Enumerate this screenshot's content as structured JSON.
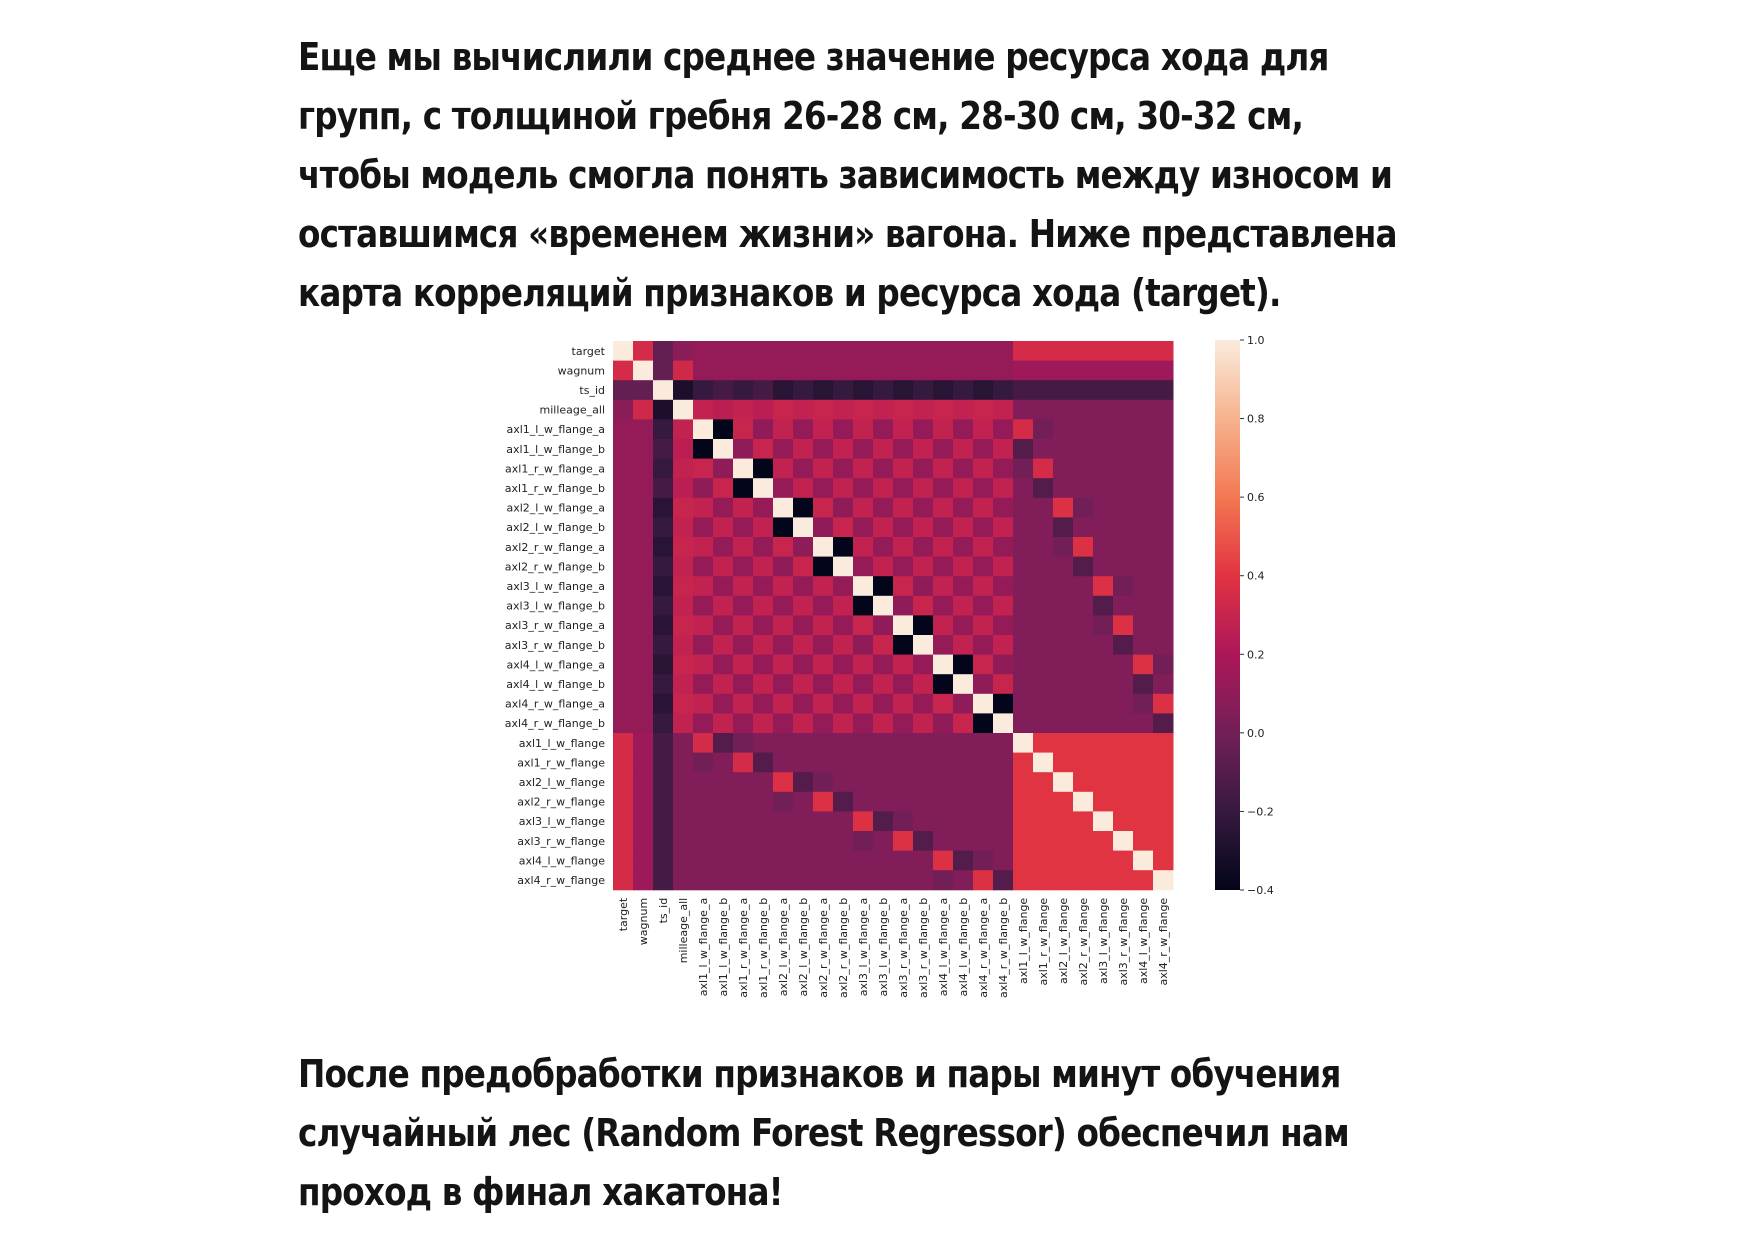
{
  "intro_lines": [
    "Еще мы вычислили среднее значение ресурса хода для",
    "групп, с толщиной гребня 26-28 см, 28-30 см, 30-32 см,",
    "чтобы модель смогла понять зависимость между износом и",
    "оставшимся «временем жизни» вагона. Ниже представлена",
    "карта корреляций признаков и ресурса хода (target)."
  ],
  "outro_lines": [
    "После предобработки признаков и пары минут обучения",
    "случайный лес (Random Forest Regressor) обеспечил нам",
    "проход в финал хакатона!"
  ],
  "chart_data": {
    "type": "heatmap",
    "title": "",
    "labels": [
      "target",
      "wagnum",
      "ts_id",
      "milleage_all",
      "axl1_l_w_flange_a",
      "axl1_l_w_flange_b",
      "axl1_r_w_flange_a",
      "axl1_r_w_flange_b",
      "axl2_l_w_flange_a",
      "axl2_l_w_flange_b",
      "axl2_r_w_flange_a",
      "axl2_r_w_flange_b",
      "axl3_l_w_flange_a",
      "axl3_l_w_flange_b",
      "axl3_r_w_flange_a",
      "axl3_r_w_flange_b",
      "axl4_l_w_flange_a",
      "axl4_l_w_flange_b",
      "axl4_r_w_flange_a",
      "axl4_r_w_flange_b",
      "axl1_l_w_flange",
      "axl1_r_w_flange",
      "axl2_l_w_flange",
      "axl2_r_w_flange",
      "axl3_l_w_flange",
      "axl3_r_w_flange",
      "axl4_l_w_flange",
      "axl4_r_w_flange"
    ],
    "colorbar": {
      "min": -0.4,
      "max": 1.0,
      "ticks": [
        1.0,
        0.8,
        0.6,
        0.4,
        0.2,
        0.0,
        -0.2,
        -0.4
      ],
      "tick_labels": [
        "1.0",
        "0.8",
        "0.6",
        "0.4",
        "0.2",
        "0.0",
        "−0.2",
        "−0.4"
      ]
    },
    "colormap": "rocket",
    "matrix": [
      [
        1.0,
        0.35,
        -0.05,
        0.08,
        0.12,
        0.12,
        0.12,
        0.12,
        0.12,
        0.12,
        0.12,
        0.12,
        0.12,
        0.12,
        0.12,
        0.12,
        0.12,
        0.12,
        0.12,
        0.12,
        0.35,
        0.35,
        0.35,
        0.35,
        0.35,
        0.35,
        0.35,
        0.35
      ],
      [
        0.35,
        1.0,
        -0.05,
        0.33,
        0.12,
        0.12,
        0.12,
        0.12,
        0.12,
        0.12,
        0.12,
        0.12,
        0.12,
        0.12,
        0.12,
        0.12,
        0.12,
        0.12,
        0.12,
        0.12,
        0.15,
        0.15,
        0.15,
        0.15,
        0.15,
        0.15,
        0.15,
        0.15
      ],
      [
        -0.05,
        -0.05,
        1.0,
        -0.3,
        -0.2,
        -0.15,
        -0.2,
        -0.15,
        -0.25,
        -0.2,
        -0.25,
        -0.2,
        -0.25,
        -0.2,
        -0.25,
        -0.2,
        -0.25,
        -0.2,
        -0.25,
        -0.2,
        -0.15,
        -0.15,
        -0.15,
        -0.15,
        -0.15,
        -0.15,
        -0.15,
        -0.15
      ],
      [
        0.08,
        0.33,
        -0.3,
        1.0,
        0.28,
        0.25,
        0.28,
        0.25,
        0.3,
        0.28,
        0.3,
        0.28,
        0.3,
        0.28,
        0.3,
        0.28,
        0.3,
        0.28,
        0.3,
        0.28,
        0.05,
        0.05,
        0.05,
        0.05,
        0.05,
        0.05,
        0.05,
        0.05
      ],
      [
        0.12,
        0.12,
        -0.2,
        0.28,
        1.0,
        -0.45,
        0.3,
        0.1,
        0.28,
        0.12,
        0.28,
        0.12,
        0.28,
        0.12,
        0.28,
        0.12,
        0.28,
        0.12,
        0.28,
        0.12,
        0.35,
        0.0,
        0.05,
        0.05,
        0.05,
        0.05,
        0.05,
        0.05
      ],
      [
        0.12,
        0.12,
        -0.15,
        0.25,
        -0.45,
        1.0,
        0.1,
        0.3,
        0.12,
        0.28,
        0.12,
        0.28,
        0.12,
        0.28,
        0.12,
        0.28,
        0.12,
        0.28,
        0.12,
        0.28,
        -0.1,
        0.05,
        0.05,
        0.05,
        0.05,
        0.05,
        0.05,
        0.05
      ],
      [
        0.12,
        0.12,
        -0.2,
        0.28,
        0.3,
        0.1,
        1.0,
        -0.45,
        0.28,
        0.12,
        0.28,
        0.12,
        0.28,
        0.12,
        0.28,
        0.12,
        0.28,
        0.12,
        0.28,
        0.12,
        0.0,
        0.35,
        0.05,
        0.05,
        0.05,
        0.05,
        0.05,
        0.05
      ],
      [
        0.12,
        0.12,
        -0.15,
        0.25,
        0.1,
        0.3,
        -0.45,
        1.0,
        0.12,
        0.28,
        0.12,
        0.28,
        0.12,
        0.28,
        0.12,
        0.28,
        0.12,
        0.28,
        0.12,
        0.28,
        0.05,
        -0.1,
        0.05,
        0.05,
        0.05,
        0.05,
        0.05,
        0.05
      ],
      [
        0.12,
        0.12,
        -0.25,
        0.3,
        0.28,
        0.12,
        0.28,
        0.12,
        1.0,
        -0.45,
        0.3,
        0.1,
        0.28,
        0.12,
        0.28,
        0.12,
        0.28,
        0.12,
        0.28,
        0.12,
        0.05,
        0.05,
        0.38,
        0.0,
        0.05,
        0.05,
        0.05,
        0.05
      ],
      [
        0.12,
        0.12,
        -0.2,
        0.28,
        0.12,
        0.28,
        0.12,
        0.28,
        -0.45,
        1.0,
        0.1,
        0.3,
        0.12,
        0.28,
        0.12,
        0.28,
        0.12,
        0.28,
        0.12,
        0.28,
        0.05,
        0.05,
        -0.1,
        0.05,
        0.05,
        0.05,
        0.05,
        0.05
      ],
      [
        0.12,
        0.12,
        -0.25,
        0.3,
        0.28,
        0.12,
        0.28,
        0.12,
        0.3,
        0.1,
        1.0,
        -0.45,
        0.28,
        0.12,
        0.28,
        0.12,
        0.28,
        0.12,
        0.28,
        0.12,
        0.05,
        0.05,
        0.0,
        0.38,
        0.05,
        0.05,
        0.05,
        0.05
      ],
      [
        0.12,
        0.12,
        -0.2,
        0.28,
        0.12,
        0.28,
        0.12,
        0.28,
        0.1,
        0.3,
        -0.45,
        1.0,
        0.12,
        0.28,
        0.12,
        0.28,
        0.12,
        0.28,
        0.12,
        0.28,
        0.05,
        0.05,
        0.05,
        -0.1,
        0.05,
        0.05,
        0.05,
        0.05
      ],
      [
        0.12,
        0.12,
        -0.25,
        0.3,
        0.28,
        0.12,
        0.28,
        0.12,
        0.28,
        0.12,
        0.28,
        0.12,
        1.0,
        -0.45,
        0.3,
        0.1,
        0.28,
        0.12,
        0.28,
        0.12,
        0.05,
        0.05,
        0.05,
        0.05,
        0.38,
        0.0,
        0.05,
        0.05
      ],
      [
        0.12,
        0.12,
        -0.2,
        0.28,
        0.12,
        0.28,
        0.12,
        0.28,
        0.12,
        0.28,
        0.12,
        0.28,
        -0.45,
        1.0,
        0.1,
        0.3,
        0.12,
        0.28,
        0.12,
        0.28,
        0.05,
        0.05,
        0.05,
        0.05,
        -0.1,
        0.05,
        0.05,
        0.05
      ],
      [
        0.12,
        0.12,
        -0.25,
        0.3,
        0.28,
        0.12,
        0.28,
        0.12,
        0.28,
        0.12,
        0.28,
        0.12,
        0.3,
        0.1,
        1.0,
        -0.45,
        0.28,
        0.12,
        0.28,
        0.12,
        0.05,
        0.05,
        0.05,
        0.05,
        0.0,
        0.38,
        0.05,
        0.05
      ],
      [
        0.12,
        0.12,
        -0.2,
        0.28,
        0.12,
        0.28,
        0.12,
        0.28,
        0.12,
        0.28,
        0.12,
        0.28,
        0.1,
        0.3,
        -0.45,
        1.0,
        0.12,
        0.28,
        0.12,
        0.28,
        0.05,
        0.05,
        0.05,
        0.05,
        0.05,
        -0.1,
        0.05,
        0.05
      ],
      [
        0.12,
        0.12,
        -0.25,
        0.3,
        0.28,
        0.12,
        0.28,
        0.12,
        0.28,
        0.12,
        0.28,
        0.12,
        0.28,
        0.12,
        0.28,
        0.12,
        1.0,
        -0.45,
        0.3,
        0.1,
        0.05,
        0.05,
        0.05,
        0.05,
        0.05,
        0.05,
        0.38,
        0.0
      ],
      [
        0.12,
        0.12,
        -0.2,
        0.28,
        0.12,
        0.28,
        0.12,
        0.28,
        0.12,
        0.28,
        0.12,
        0.28,
        0.12,
        0.28,
        0.12,
        0.28,
        -0.45,
        1.0,
        0.1,
        0.3,
        0.05,
        0.05,
        0.05,
        0.05,
        0.05,
        0.05,
        -0.1,
        0.05
      ],
      [
        0.12,
        0.12,
        -0.25,
        0.3,
        0.28,
        0.12,
        0.28,
        0.12,
        0.28,
        0.12,
        0.28,
        0.12,
        0.28,
        0.12,
        0.28,
        0.12,
        0.3,
        0.1,
        1.0,
        -0.45,
        0.05,
        0.05,
        0.05,
        0.05,
        0.05,
        0.05,
        0.0,
        0.38
      ],
      [
        0.12,
        0.12,
        -0.2,
        0.28,
        0.12,
        0.28,
        0.12,
        0.28,
        0.12,
        0.28,
        0.12,
        0.28,
        0.12,
        0.28,
        0.12,
        0.28,
        0.1,
        0.3,
        -0.45,
        1.0,
        0.05,
        0.05,
        0.05,
        0.05,
        0.05,
        0.05,
        0.05,
        -0.1
      ],
      [
        0.35,
        0.15,
        -0.15,
        0.05,
        0.35,
        -0.1,
        0.0,
        0.05,
        0.05,
        0.05,
        0.05,
        0.05,
        0.05,
        0.05,
        0.05,
        0.05,
        0.05,
        0.05,
        0.05,
        0.05,
        1.0,
        0.4,
        0.4,
        0.4,
        0.4,
        0.4,
        0.4,
        0.4
      ],
      [
        0.35,
        0.15,
        -0.15,
        0.05,
        0.0,
        0.05,
        0.35,
        -0.1,
        0.05,
        0.05,
        0.05,
        0.05,
        0.05,
        0.05,
        0.05,
        0.05,
        0.05,
        0.05,
        0.05,
        0.05,
        0.4,
        1.0,
        0.4,
        0.4,
        0.4,
        0.4,
        0.4,
        0.4
      ],
      [
        0.35,
        0.15,
        -0.15,
        0.05,
        0.05,
        0.05,
        0.05,
        0.05,
        0.38,
        -0.1,
        0.0,
        0.05,
        0.05,
        0.05,
        0.05,
        0.05,
        0.05,
        0.05,
        0.05,
        0.05,
        0.4,
        0.4,
        1.0,
        0.4,
        0.4,
        0.4,
        0.4,
        0.4
      ],
      [
        0.35,
        0.15,
        -0.15,
        0.05,
        0.05,
        0.05,
        0.05,
        0.05,
        0.0,
        0.05,
        0.38,
        -0.1,
        0.05,
        0.05,
        0.05,
        0.05,
        0.05,
        0.05,
        0.05,
        0.05,
        0.4,
        0.4,
        0.4,
        1.0,
        0.4,
        0.4,
        0.4,
        0.4
      ],
      [
        0.35,
        0.15,
        -0.15,
        0.05,
        0.05,
        0.05,
        0.05,
        0.05,
        0.05,
        0.05,
        0.05,
        0.05,
        0.38,
        -0.1,
        0.0,
        0.05,
        0.05,
        0.05,
        0.05,
        0.05,
        0.4,
        0.4,
        0.4,
        0.4,
        1.0,
        0.4,
        0.4,
        0.4
      ],
      [
        0.35,
        0.15,
        -0.15,
        0.05,
        0.05,
        0.05,
        0.05,
        0.05,
        0.05,
        0.05,
        0.05,
        0.05,
        0.0,
        0.05,
        0.38,
        -0.1,
        0.05,
        0.05,
        0.05,
        0.05,
        0.4,
        0.4,
        0.4,
        0.4,
        0.4,
        1.0,
        0.4,
        0.4
      ],
      [
        0.35,
        0.15,
        -0.15,
        0.05,
        0.05,
        0.05,
        0.05,
        0.05,
        0.05,
        0.05,
        0.05,
        0.05,
        0.05,
        0.05,
        0.05,
        0.05,
        0.38,
        -0.1,
        0.0,
        0.05,
        0.4,
        0.4,
        0.4,
        0.4,
        0.4,
        0.4,
        1.0,
        0.4
      ],
      [
        0.35,
        0.15,
        -0.15,
        0.05,
        0.05,
        0.05,
        0.05,
        0.05,
        0.05,
        0.05,
        0.05,
        0.05,
        0.05,
        0.05,
        0.05,
        0.05,
        0.0,
        0.05,
        0.38,
        -0.1,
        0.4,
        0.4,
        0.4,
        0.4,
        0.4,
        0.4,
        0.4,
        1.0
      ]
    ]
  }
}
